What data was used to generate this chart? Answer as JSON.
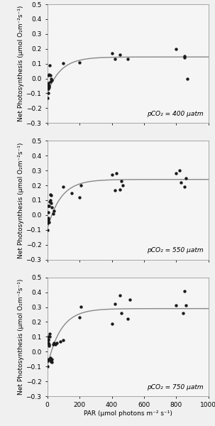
{
  "panels": [
    {
      "label": "pCO₂ = 400 μatm",
      "scatter_x": [
        0,
        5,
        5,
        5,
        5,
        5,
        7,
        8,
        10,
        10,
        12,
        15,
        18,
        20,
        25,
        30,
        100,
        200,
        400,
        420,
        450,
        500,
        800,
        850,
        850,
        870
      ],
      "scatter_y": [
        -0.13,
        -0.1,
        -0.07,
        -0.05,
        -0.04,
        -0.03,
        -0.045,
        0.02,
        -0.06,
        0.025,
        -0.05,
        0.09,
        -0.02,
        0.02,
        0.0,
        -0.01,
        0.105,
        0.11,
        0.17,
        0.13,
        0.16,
        0.13,
        0.2,
        0.15,
        0.14,
        0.0
      ],
      "curve_pmax": 0.245,
      "curve_alpha": 0.012,
      "curve_rd": 0.1,
      "ylim": [
        -0.3,
        0.5
      ],
      "yticks": [
        -0.3,
        -0.2,
        -0.1,
        0.0,
        0.1,
        0.2,
        0.3,
        0.4,
        0.5
      ]
    },
    {
      "label": "pCO₂ = 550 μatm",
      "scatter_x": [
        0,
        3,
        5,
        5,
        5,
        7,
        8,
        10,
        12,
        15,
        18,
        20,
        22,
        25,
        30,
        35,
        40,
        100,
        150,
        200,
        210,
        400,
        420,
        430,
        450,
        460,
        470,
        800,
        820,
        830,
        850,
        860
      ],
      "scatter_y": [
        -0.1,
        -0.055,
        -0.045,
        -0.03,
        -0.02,
        0.02,
        0.06,
        0.06,
        -0.05,
        0.09,
        0.1,
        0.14,
        0.135,
        0.08,
        0.05,
        0.01,
        0.03,
        0.19,
        0.15,
        0.12,
        0.2,
        0.27,
        0.165,
        0.28,
        0.17,
        0.23,
        0.2,
        0.28,
        0.3,
        0.22,
        0.19,
        0.25
      ],
      "curve_pmax": 0.335,
      "curve_alpha": 0.012,
      "curve_rd": 0.095,
      "ylim": [
        -0.3,
        0.5
      ],
      "yticks": [
        -0.3,
        -0.2,
        -0.1,
        0.0,
        0.1,
        0.2,
        0.3,
        0.4,
        0.5
      ]
    },
    {
      "label": "pCO₂ = 750 μatm",
      "scatter_x": [
        0,
        3,
        5,
        5,
        6,
        7,
        8,
        10,
        12,
        14,
        15,
        18,
        20,
        22,
        25,
        27,
        30,
        35,
        40,
        50,
        60,
        80,
        100,
        200,
        210,
        400,
        420,
        450,
        460,
        500,
        510,
        800,
        840,
        850,
        860
      ],
      "scatter_y": [
        -0.1,
        -0.06,
        -0.05,
        0.06,
        0.08,
        0.085,
        0.1,
        0.04,
        0.05,
        0.1,
        0.12,
        -0.04,
        -0.06,
        -0.065,
        -0.065,
        -0.05,
        -0.07,
        0.05,
        0.06,
        0.05,
        0.06,
        0.07,
        0.08,
        0.23,
        0.305,
        0.19,
        0.32,
        0.38,
        0.26,
        0.22,
        0.35,
        0.31,
        0.26,
        0.41,
        0.31
      ],
      "curve_pmax": 0.39,
      "curve_alpha": 0.012,
      "curve_rd": 0.1,
      "ylim": [
        -0.3,
        0.5
      ],
      "yticks": [
        -0.3,
        -0.2,
        -0.1,
        0.0,
        0.1,
        0.2,
        0.3,
        0.4,
        0.5
      ]
    }
  ],
  "xlim": [
    0,
    1000
  ],
  "xticks": [
    0,
    200,
    400,
    600,
    800,
    1000
  ],
  "xlabel": "PAR (μmol photons m⁻² s⁻¹)",
  "ylabel": "Net Photosynthesis (μmol O₂m⁻²s⁻¹)",
  "curve_color": "#888888",
  "scatter_color": "#1a1a1a",
  "bg_color": "#f5f5f5",
  "label_fontsize": 6.5,
  "axis_fontsize": 6.5,
  "tick_fontsize": 6.5
}
